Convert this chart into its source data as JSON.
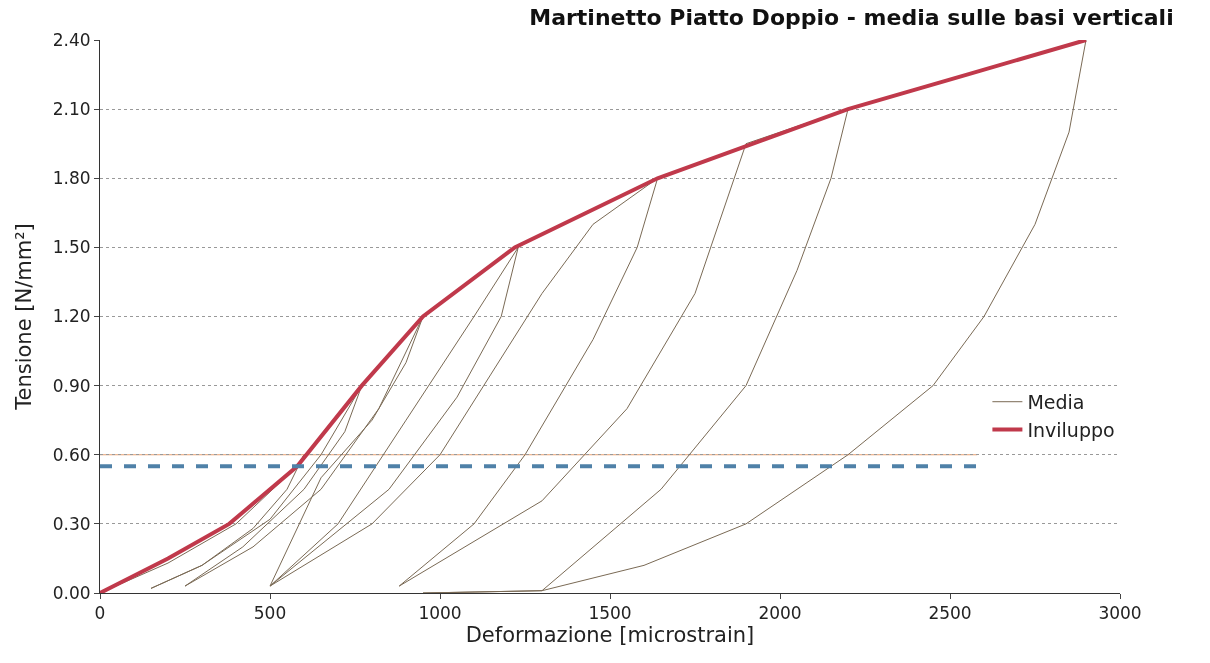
{
  "chart_data": {
    "type": "line",
    "title": "Martinetto Piatto Doppio - media sulle basi verticali",
    "xlabel": "Deformazione [microstrain]",
    "ylabel": "Tensione [N/mm²]",
    "series": [
      {
        "name": "Media",
        "color": "#7a6a55",
        "x": [
          0,
          200,
          400,
          580,
          600,
          550,
          450,
          300,
          150,
          300,
          500,
          650,
          770,
          720,
          600,
          420,
          250,
          450,
          650,
          820,
          950,
          900,
          800,
          650,
          500,
          700,
          900,
          1100,
          1230,
          1180,
          1050,
          850,
          500,
          800,
          1000,
          1150,
          1300,
          1450,
          1640,
          1580,
          1450,
          1250,
          1100,
          880,
          1300,
          1550,
          1750,
          1900,
          2200,
          2150,
          2050,
          1900,
          1650,
          1300,
          950,
          1300,
          1600,
          1900,
          2200,
          2450,
          2600,
          2750,
          2850,
          2900
        ],
        "values": [
          0,
          0.13,
          0.3,
          0.55,
          0.6,
          0.45,
          0.28,
          0.12,
          0.02,
          0.12,
          0.32,
          0.6,
          0.9,
          0.7,
          0.45,
          0.2,
          0.03,
          0.2,
          0.45,
          0.8,
          1.2,
          1.0,
          0.75,
          0.5,
          0.03,
          0.3,
          0.75,
          1.2,
          1.5,
          1.2,
          0.85,
          0.45,
          0.03,
          0.3,
          0.6,
          0.95,
          1.3,
          1.6,
          1.8,
          1.5,
          1.1,
          0.6,
          0.3,
          0.03,
          0.4,
          0.8,
          1.3,
          1.95,
          2.1,
          1.8,
          1.4,
          0.9,
          0.45,
          0.01,
          0,
          0.01,
          0.12,
          0.3,
          0.6,
          0.9,
          1.2,
          1.6,
          2.0,
          2.4
        ]
      },
      {
        "name": "Inviluppo",
        "color": "#c0394b",
        "x": [
          0,
          200,
          380,
          580,
          770,
          950,
          1220,
          1640,
          2200,
          2550,
          2900
        ],
        "values": [
          0,
          0.15,
          0.3,
          0.55,
          0.9,
          1.2,
          1.5,
          1.8,
          2.1,
          2.25,
          2.4
        ]
      }
    ],
    "ref_lines": [
      {
        "axis": "y",
        "value": 0.55,
        "color": "#4f81a8",
        "line_style": "dashed"
      },
      {
        "axis": "y",
        "value": 0.6,
        "color": "#e8a070",
        "line_style": "solid"
      }
    ],
    "xlim": [
      0,
      3000
    ],
    "xticks": [
      0,
      500,
      1000,
      1500,
      2000,
      2500,
      3000
    ],
    "ylim": [
      0,
      2.4
    ],
    "yticks": [
      {
        "value": 0,
        "label": "0.00"
      },
      {
        "value": 0.3,
        "label": "0.30"
      },
      {
        "value": 0.6,
        "label": "0.60"
      },
      {
        "value": 0.9,
        "label": "0.90"
      },
      {
        "value": 1.2,
        "label": "1.20"
      },
      {
        "value": 1.5,
        "label": "1.50"
      },
      {
        "value": 1.8,
        "label": "1.80"
      },
      {
        "value": 2.1,
        "label": "2.10"
      },
      {
        "value": 2.4,
        "label": "2.40"
      }
    ],
    "grid": "y",
    "legend": "right",
    "line_style": "solid",
    "marker": "none"
  }
}
